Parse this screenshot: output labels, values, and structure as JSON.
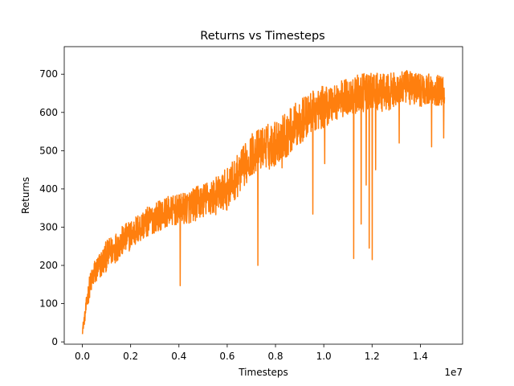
{
  "chart_data": {
    "type": "line",
    "title": "Returns vs Timesteps",
    "xlabel": "Timesteps",
    "ylabel": "Returns",
    "x_offset_label": "1e7",
    "xlim": [
      -0.075,
      1.575
    ],
    "ylim": [
      -6,
      772
    ],
    "x_scale_multiplier": 10000000,
    "grid": false,
    "legend": "none",
    "x_ticks": [
      0.0,
      0.2,
      0.4,
      0.6,
      0.8,
      1.0,
      1.2,
      1.4
    ],
    "x_tick_labels": [
      "0.0",
      "0.2",
      "0.4",
      "0.6",
      "0.8",
      "1.0",
      "1.2",
      "1.4"
    ],
    "y_ticks": [
      0,
      100,
      200,
      300,
      400,
      500,
      600,
      700
    ],
    "y_tick_labels": [
      "0",
      "100",
      "200",
      "300",
      "400",
      "500",
      "600",
      "700"
    ],
    "series": [
      {
        "color": "#ff7f0e",
        "x": [
          0.0,
          0.01,
          0.02,
          0.03,
          0.05,
          0.08,
          0.1,
          0.15,
          0.2,
          0.25,
          0.3,
          0.35,
          0.4,
          0.45,
          0.5,
          0.55,
          0.6,
          0.65,
          0.7,
          0.75,
          0.8,
          0.85,
          0.9,
          0.95,
          1.0,
          1.05,
          1.1,
          1.15,
          1.2,
          1.25,
          1.3,
          1.35,
          1.4,
          1.45,
          1.5
        ],
        "y": [
          30,
          65,
          110,
          145,
          180,
          205,
          225,
          255,
          280,
          305,
          325,
          340,
          345,
          355,
          370,
          380,
          400,
          440,
          490,
          510,
          520,
          545,
          575,
          600,
          615,
          630,
          640,
          650,
          655,
          650,
          660,
          665,
          660,
          660,
          655
        ],
        "noise_amplitude": [
          10,
          15,
          25,
          30,
          35,
          38,
          40,
          40,
          40,
          40,
          40,
          40,
          40,
          45,
          45,
          50,
          55,
          55,
          55,
          55,
          60,
          60,
          60,
          55,
          55,
          50,
          50,
          50,
          50,
          50,
          45,
          45,
          45,
          40,
          40
        ],
        "dips": [
          {
            "x": 0.405,
            "y": 147
          },
          {
            "x": 0.727,
            "y": 200
          },
          {
            "x": 0.775,
            "y": 452
          },
          {
            "x": 0.827,
            "y": 455
          },
          {
            "x": 0.955,
            "y": 334
          },
          {
            "x": 1.004,
            "y": 466
          },
          {
            "x": 1.124,
            "y": 218
          },
          {
            "x": 1.155,
            "y": 308
          },
          {
            "x": 1.176,
            "y": 410
          },
          {
            "x": 1.188,
            "y": 245
          },
          {
            "x": 1.201,
            "y": 215
          },
          {
            "x": 1.215,
            "y": 450
          },
          {
            "x": 1.312,
            "y": 520
          },
          {
            "x": 1.447,
            "y": 510
          },
          {
            "x": 1.497,
            "y": 533
          }
        ]
      }
    ]
  }
}
